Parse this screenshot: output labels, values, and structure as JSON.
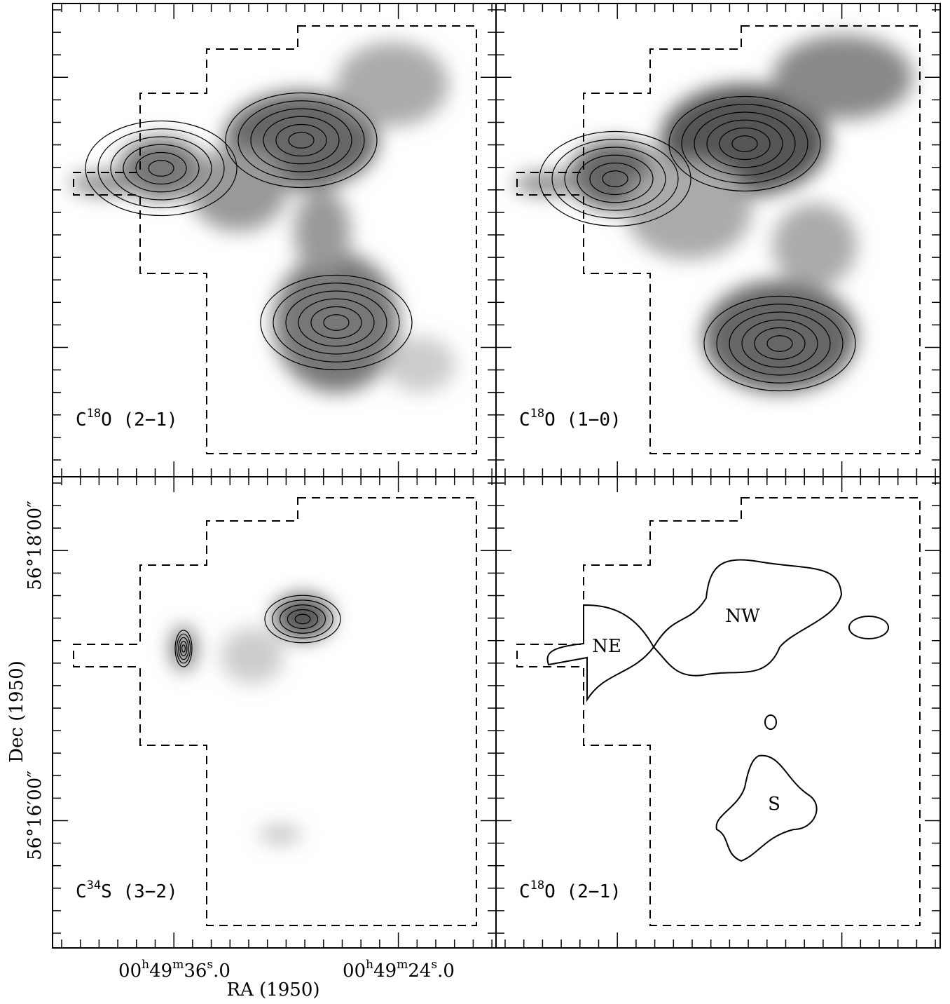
{
  "figure": {
    "panels": [
      {
        "label": [
          {
            "text": "C"
          },
          {
            "text": "18",
            "sup": true
          },
          {
            "text": "O (2−1)"
          }
        ]
      },
      {
        "label": [
          {
            "text": "C"
          },
          {
            "text": "18",
            "sup": true
          },
          {
            "text": "O (1−0)"
          }
        ]
      },
      {
        "label": [
          {
            "text": "C"
          },
          {
            "text": "34",
            "sup": true
          },
          {
            "text": "S (3−2)"
          }
        ]
      },
      {
        "label": [
          {
            "text": "C"
          },
          {
            "text": "18",
            "sup": true
          },
          {
            "text": "O (2−1)"
          }
        ],
        "regions": [
          "NE",
          "NW",
          "S"
        ]
      }
    ],
    "x_axis": {
      "title": "RA (1950)",
      "ticks": [
        [
          {
            "text": "00"
          },
          {
            "text": "h",
            "sup": true
          },
          {
            "text": "49"
          },
          {
            "text": "m",
            "sup": true
          },
          {
            "text": "36"
          },
          {
            "text": "s",
            "sup": true
          },
          {
            "text": ".0"
          }
        ],
        [
          {
            "text": "00"
          },
          {
            "text": "h",
            "sup": true
          },
          {
            "text": "49"
          },
          {
            "text": "m",
            "sup": true
          },
          {
            "text": "24"
          },
          {
            "text": "s",
            "sup": true
          },
          {
            "text": ".0"
          }
        ]
      ]
    },
    "y_axis": {
      "title": "Dec (1950)",
      "ticks": [
        "56°18′00″",
        "56°16′00″"
      ]
    }
  }
}
